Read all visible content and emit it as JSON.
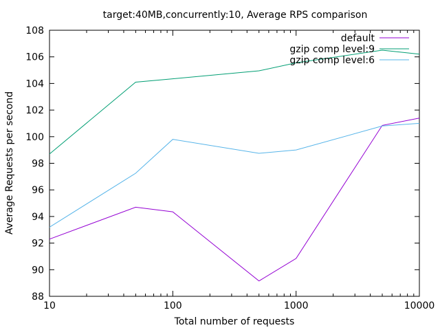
{
  "chart_data": {
    "type": "line",
    "title": "target:40MB,concurrently:10, Average RPS comparison",
    "xlabel": "Total number of requests",
    "ylabel": "Average Requests per second",
    "xscale": "log",
    "xlim": [
      10,
      10000
    ],
    "ylim": [
      88,
      108
    ],
    "x_ticks": [
      10,
      100,
      1000,
      10000
    ],
    "x_tick_labels": [
      "10",
      "100",
      "1000",
      "10000"
    ],
    "y_ticks": [
      88,
      90,
      92,
      94,
      96,
      98,
      100,
      102,
      104,
      106,
      108
    ],
    "y_tick_labels": [
      "88",
      "90",
      "92",
      "94",
      "96",
      "98",
      "100",
      "102",
      "104",
      "106",
      "108"
    ],
    "grid": false,
    "legend_position": "top-right",
    "x": [
      10,
      50,
      100,
      500,
      1000,
      5000,
      10000
    ],
    "series": [
      {
        "name": "default",
        "color": "#9400d3",
        "values": [
          92.3,
          94.7,
          94.35,
          89.15,
          90.85,
          100.85,
          101.4
        ]
      },
      {
        "name": "gzip comp level:9",
        "color": "#009e73",
        "values": [
          98.7,
          104.1,
          104.35,
          104.95,
          105.55,
          106.5,
          106.2
        ]
      },
      {
        "name": "gzip comp level:6",
        "color": "#56b4e9",
        "values": [
          93.2,
          97.25,
          99.8,
          98.75,
          99.0,
          100.8,
          101.0
        ]
      }
    ]
  }
}
